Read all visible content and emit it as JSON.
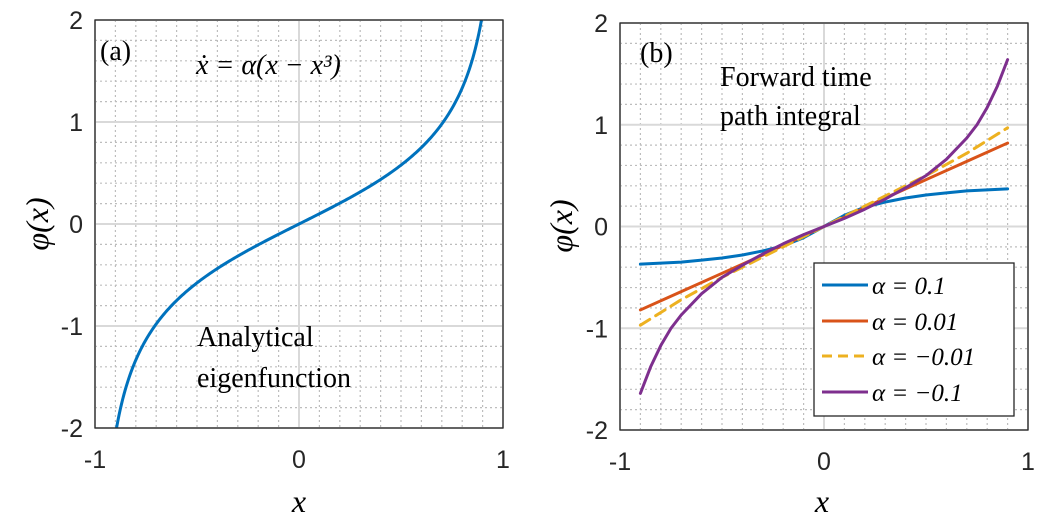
{
  "colors": {
    "blue": "#0072BD",
    "orange": "#D95319",
    "yellow": "#EDB120",
    "purple": "#7E2F8E",
    "grid_major": "#d9d9d9",
    "grid_minor": "#bdbdbd"
  },
  "chart_data": [
    {
      "type": "line",
      "panel_label": "(a)",
      "equation": "ẋ = α(x − x³)",
      "annotation_line1": "Analytical",
      "annotation_line2": "eigenfunction",
      "xlabel": "x",
      "ylabel": "φ(x)",
      "xlim": [
        -1,
        1
      ],
      "ylim": [
        -2,
        2
      ],
      "xticks": [
        "-1",
        "0",
        "1"
      ],
      "yticks": [
        "2",
        "1",
        "0",
        "-1",
        "-2"
      ],
      "grid": "major and minor",
      "series": [
        {
          "formula": "x/sqrt(1-x^2)",
          "color": "blue",
          "style": "solid",
          "x": [
            -0.894,
            -0.85,
            -0.8,
            -0.75,
            -0.7,
            -0.6,
            -0.5,
            -0.4,
            -0.3,
            -0.2,
            -0.1,
            0,
            0.1,
            0.2,
            0.3,
            0.4,
            0.5,
            0.6,
            0.7,
            0.75,
            0.8,
            0.85,
            0.894
          ],
          "values": [
            -2.0,
            -1.614,
            -1.333,
            -1.134,
            -0.98,
            -0.75,
            -0.577,
            -0.436,
            -0.314,
            -0.204,
            -0.101,
            0,
            0.101,
            0.204,
            0.314,
            0.436,
            0.577,
            0.75,
            0.98,
            1.134,
            1.333,
            1.614,
            2.0
          ]
        }
      ]
    },
    {
      "type": "line",
      "panel_label": "(b)",
      "annotation_line1": "Forward time",
      "annotation_line2": "path integral",
      "xlabel": "x",
      "ylabel": "φ(x)",
      "xlim": [
        -1,
        1
      ],
      "ylim": [
        -2,
        2
      ],
      "xticks": [
        "-1",
        "0",
        "1"
      ],
      "yticks": [
        "2",
        "1",
        "0",
        "-1",
        "-2"
      ],
      "grid": "major and minor",
      "legend": "bottom-right",
      "series": [
        {
          "name": "α = 0.1",
          "color": "blue",
          "style": "solid",
          "x": [
            -0.9,
            -0.8,
            -0.7,
            -0.6,
            -0.5,
            -0.4,
            -0.3,
            -0.2,
            -0.1,
            0,
            0.1,
            0.2,
            0.3,
            0.4,
            0.5,
            0.6,
            0.7,
            0.8,
            0.9
          ],
          "values": [
            -0.37,
            -0.36,
            -0.35,
            -0.33,
            -0.31,
            -0.28,
            -0.24,
            -0.19,
            -0.11,
            0,
            0.11,
            0.19,
            0.24,
            0.28,
            0.31,
            0.33,
            0.35,
            0.36,
            0.37
          ]
        },
        {
          "name": "α = 0.01",
          "color": "orange",
          "style": "solid",
          "x": [
            -0.9,
            -0.7,
            -0.5,
            -0.3,
            -0.1,
            0,
            0.1,
            0.3,
            0.5,
            0.7,
            0.9
          ],
          "values": [
            -0.82,
            -0.64,
            -0.46,
            -0.28,
            -0.09,
            0,
            0.09,
            0.28,
            0.46,
            0.64,
            0.82
          ]
        },
        {
          "name": "α = −0.01",
          "color": "yellow",
          "style": "dashed",
          "x": [
            -0.9,
            -0.7,
            -0.5,
            -0.3,
            -0.1,
            0,
            0.1,
            0.3,
            0.5,
            0.7,
            0.9
          ],
          "values": [
            -0.97,
            -0.72,
            -0.5,
            -0.3,
            -0.1,
            0,
            0.1,
            0.3,
            0.5,
            0.72,
            0.97
          ]
        },
        {
          "name": "α = −0.1",
          "color": "purple",
          "style": "solid",
          "x": [
            -0.9,
            -0.85,
            -0.8,
            -0.75,
            -0.7,
            -0.6,
            -0.5,
            -0.4,
            -0.3,
            -0.2,
            -0.1,
            0,
            0.1,
            0.2,
            0.3,
            0.4,
            0.5,
            0.6,
            0.7,
            0.75,
            0.8,
            0.85,
            0.9
          ],
          "values": [
            -1.64,
            -1.38,
            -1.17,
            -1.0,
            -0.87,
            -0.66,
            -0.5,
            -0.38,
            -0.27,
            -0.17,
            -0.08,
            0,
            0.08,
            0.17,
            0.27,
            0.38,
            0.5,
            0.66,
            0.87,
            1.0,
            1.17,
            1.38,
            1.64
          ]
        }
      ]
    }
  ]
}
